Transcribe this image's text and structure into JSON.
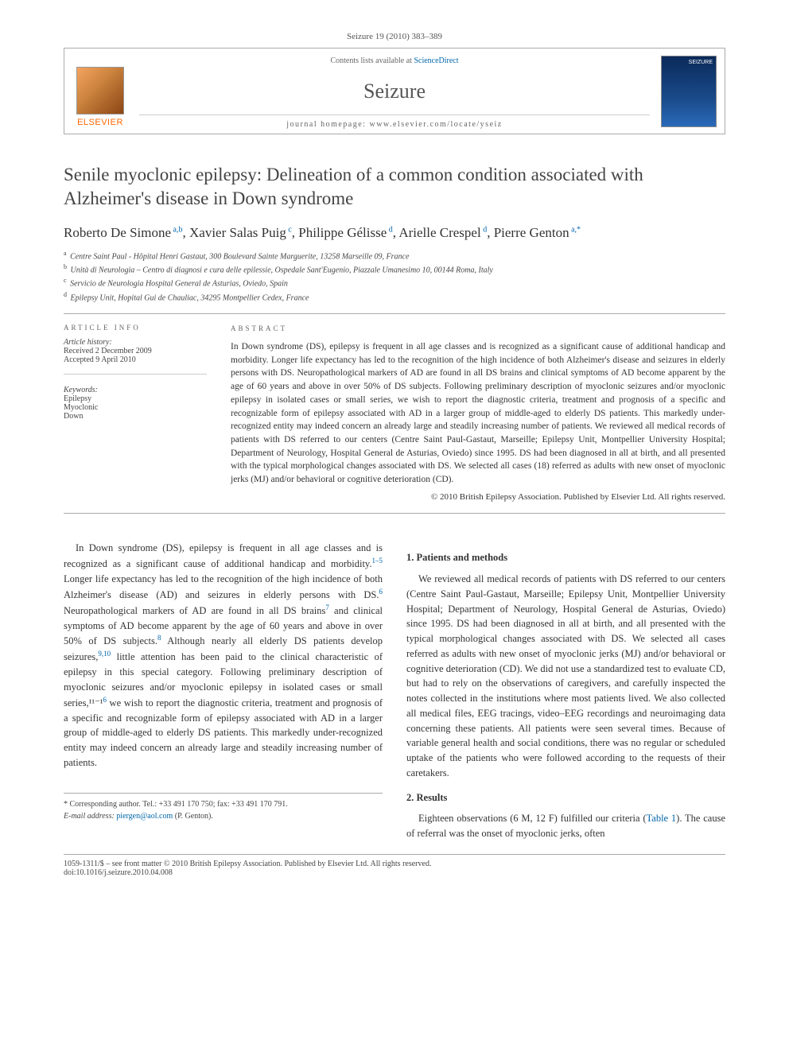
{
  "header": {
    "citation": "Seizure 19 (2010) 383–389"
  },
  "topbox": {
    "contents_prefix": "Contents lists available at ",
    "contents_link": "ScienceDirect",
    "journal_name": "Seizure",
    "homepage_prefix": "journal homepage: ",
    "homepage_url": "www.elsevier.com/locate/yseiz",
    "publisher_name": "ELSEVIER"
  },
  "article": {
    "title": "Senile myoclonic epilepsy: Delineation of a common condition associated with Alzheimer's disease in Down syndrome",
    "authors_html": "Roberto De Simone|a,b|, Xavier Salas Puig|c|, Philippe Gélisse|d|, Arielle Crespel|d|, Pierre Genton|a,*|",
    "authors": [
      {
        "name": "Roberto De Simone",
        "aff": "a,b"
      },
      {
        "name": "Xavier Salas Puig",
        "aff": "c"
      },
      {
        "name": "Philippe Gélisse",
        "aff": "d"
      },
      {
        "name": "Arielle Crespel",
        "aff": "d"
      },
      {
        "name": "Pierre Genton",
        "aff": "a,*"
      }
    ],
    "affiliations": [
      {
        "key": "a",
        "text": "Centre Saint Paul - Hôpital Henri Gastaut, 300 Boulevard Sainte Marguerite, 13258 Marseille 09, France"
      },
      {
        "key": "b",
        "text": "Unità di Neurologia – Centro di diagnosi e cura delle epilessie, Ospedale Sant'Eugenio, Piazzale Umanesimo 10, 00144 Roma, Italy"
      },
      {
        "key": "c",
        "text": "Servicio de Neurologia Hospital General de Asturias, Oviedo, Spain"
      },
      {
        "key": "d",
        "text": "Epilepsy Unit, Hopital Gui de Chauliac, 34295 Montpellier Cedex, France"
      }
    ]
  },
  "info": {
    "label_info": "ARTICLE INFO",
    "history_label": "Article history:",
    "received": "Received 2 December 2009",
    "accepted": "Accepted 9 April 2010",
    "keywords_label": "Keywords:",
    "keywords": [
      "Epilepsy",
      "Myoclonic",
      "Down"
    ]
  },
  "abstract": {
    "label": "ABSTRACT",
    "text": "In Down syndrome (DS), epilepsy is frequent in all age classes and is recognized as a significant cause of additional handicap and morbidity. Longer life expectancy has led to the recognition of the high incidence of both Alzheimer's disease and seizures in elderly persons with DS. Neuropathological markers of AD are found in all DS brains and clinical symptoms of AD become apparent by the age of 60 years and above in over 50% of DS subjects. Following preliminary description of myoclonic seizures and/or myoclonic epilepsy in isolated cases or small series, we wish to report the diagnostic criteria, treatment and prognosis of a specific and recognizable form of epilepsy associated with AD in a larger group of middle-aged to elderly DS patients. This markedly under-recognized entity may indeed concern an already large and steadily increasing number of patients. We reviewed all medical records of patients with DS referred to our centers (Centre Saint Paul-Gastaut, Marseille; Epilepsy Unit, Montpellier University Hospital; Department of Neurology, Hospital General de Asturias, Oviedo) since 1995. DS had been diagnosed in all at birth, and all presented with the typical morphological changes associated with DS. We selected all cases (18) referred as adults with new onset of myoclonic jerks (MJ) and/or behavioral or cognitive deterioration (CD).",
    "copyright": "© 2010 British Epilepsy Association. Published by Elsevier Ltd. All rights reserved."
  },
  "body": {
    "intro": "In Down syndrome (DS), epilepsy is frequent in all age classes and is recognized as a significant cause of additional handicap and morbidity.¹⁻⁵ Longer life expectancy has led to the recognition of the high incidence of both Alzheimer's disease (AD) and seizures in elderly persons with DS.⁶ Neuropathological markers of AD are found in all DS brains⁷ and clinical symptoms of AD become apparent by the age of 60 years and above in over 50% of DS subjects.⁸ Although nearly all elderly DS patients develop seizures,⁹,¹⁰ little attention has been paid to the clinical characteristic of epilepsy in this special category. Following preliminary description of myoclonic seizures and/or myoclonic epilepsy in isolated cases or small series,¹¹⁻¹⁶ we wish to report the diagnostic criteria, treatment and prognosis of a specific and recognizable form of epilepsy associated with AD in a larger group of middle-aged to elderly DS patients. This markedly under-recognized entity may indeed concern an already large and steadily increasing number of patients.",
    "section1_title": "1. Patients and methods",
    "section1_text": "We reviewed all medical records of patients with DS referred to our centers (Centre Saint Paul-Gastaut, Marseille; Epilepsy Unit, Montpellier University Hospital; Department of Neurology, Hospital General de Asturias, Oviedo) since 1995. DS had been diagnosed in all at birth, and all presented with the typical morphological changes associated with DS. We selected all cases referred as adults with new onset of myoclonic jerks (MJ) and/or behavioral or cognitive deterioration (CD). We did not use a standardized test to evaluate CD, but had to rely on the observations of caregivers, and carefully inspected the notes collected in the institutions where most patients lived. We also collected all medical files, EEG tracings, video–EEG recordings and neuroimaging data concerning these patients. All patients were seen several times. Because of variable general health and social conditions, there was no regular or scheduled uptake of the patients who were followed according to the requests of their caretakers.",
    "section2_title": "2. Results",
    "section2_text": "Eighteen observations (6 M, 12 F) fulfilled our criteria (Table 1). The cause of referral was the onset of myoclonic jerks, often"
  },
  "footer": {
    "corresponding_label": "* Corresponding author. Tel.: +33 491 170 750; fax: +33 491 170 791.",
    "email_label": "E-mail address:",
    "email": "piergen@aol.com",
    "email_name": "(P. Genton).",
    "copyright_line": "1059-1311/$ – see front matter © 2010 British Epilepsy Association. Published by Elsevier Ltd. All rights reserved.",
    "doi": "doi:10.1016/j.seizure.2010.04.008"
  },
  "colors": {
    "link": "#0066aa",
    "publisher_orange": "#ff6600",
    "rule": "#aaaaaa",
    "text": "#333333"
  }
}
